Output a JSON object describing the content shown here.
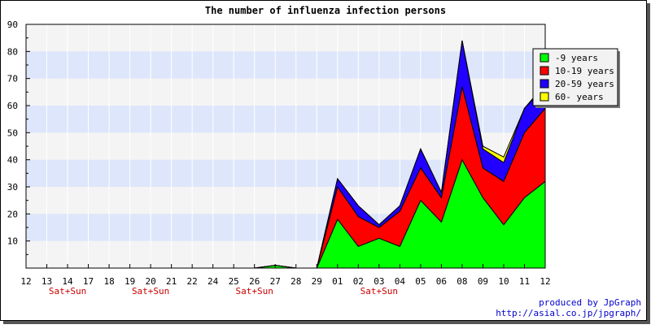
{
  "chart_data": {
    "type": "area",
    "stacked": true,
    "title": "The number of influenza infection persons",
    "xlabel": "",
    "ylabel": "",
    "ylim": [
      0,
      90
    ],
    "yticks": [
      10,
      20,
      30,
      40,
      50,
      60,
      70,
      80,
      90
    ],
    "grid": "alternating horizontal bands",
    "categories": [
      "12",
      "13",
      "14",
      "17",
      "18",
      "19",
      "20",
      "21",
      "22",
      "24",
      "25",
      "26",
      "27",
      "28",
      "29",
      "01",
      "02",
      "03",
      "04",
      "05",
      "06",
      "08",
      "09",
      "10",
      "11",
      "12"
    ],
    "weekend_labels": [
      {
        "category_index": 2,
        "text": "Sat+Sun"
      },
      {
        "category_index": 6,
        "text": "Sat+Sun"
      },
      {
        "category_index": 11,
        "text": "Sat+Sun"
      },
      {
        "category_index": 17,
        "text": "Sat+Sun"
      }
    ],
    "series": [
      {
        "name": "-9 years",
        "color": "#00ff00",
        "values": [
          0,
          0,
          0,
          0,
          0,
          0,
          0,
          0,
          0,
          0,
          0,
          0,
          1,
          0,
          0,
          18,
          8,
          11,
          8,
          25,
          17,
          40,
          26,
          16,
          26,
          32
        ]
      },
      {
        "name": "10-19 years",
        "color": "#ff0000",
        "values": [
          0,
          0,
          0,
          0,
          0,
          0,
          0,
          0,
          0,
          0,
          0,
          0,
          0,
          0,
          0,
          12,
          11,
          4,
          13,
          12,
          9,
          27,
          11,
          16,
          24,
          27
        ]
      },
      {
        "name": "20-59 years",
        "color": "#2200ff",
        "values": [
          0,
          0,
          0,
          0,
          0,
          0,
          0,
          0,
          0,
          0,
          0,
          0,
          0,
          0,
          0,
          3,
          4,
          1,
          2,
          7,
          2,
          17,
          7,
          7,
          9,
          8
        ]
      },
      {
        "name": "60- years",
        "color": "#ffff00",
        "values": [
          0,
          0,
          0,
          0,
          0,
          0,
          0,
          0,
          0,
          0,
          0,
          0,
          0,
          0,
          0,
          0,
          0,
          0,
          0,
          0,
          0,
          0,
          1,
          2,
          0,
          1
        ]
      }
    ],
    "legend_position": "top-right"
  },
  "credits": {
    "line1": "produced by JpGraph",
    "line2": "http://asial.co.jp/jpgraph/"
  },
  "colors": {
    "plot_background": "#f4f4f4",
    "band_color": "#dde6fb",
    "weekend_text": "#cc0000",
    "credits_text": "#0000cc"
  }
}
